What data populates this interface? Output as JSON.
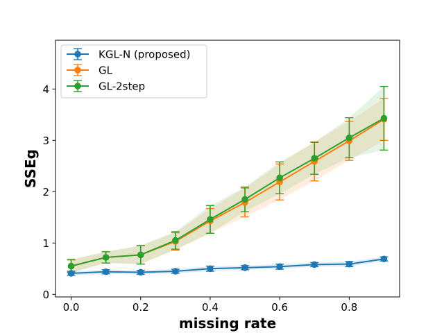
{
  "chart_data": {
    "type": "line",
    "title": "",
    "xlabel": "missing rate",
    "ylabel": "SSEg",
    "xlim": [
      -0.045,
      0.945
    ],
    "ylim": [
      -0.05,
      4.95
    ],
    "xticks": [
      0.0,
      0.2,
      0.4,
      0.6,
      0.8
    ],
    "xtick_labels": [
      "0.0",
      "0.2",
      "0.4",
      "0.6",
      "0.8"
    ],
    "yticks": [
      0,
      1,
      2,
      3,
      4
    ],
    "ytick_labels": [
      "0",
      "1",
      "2",
      "3",
      "4"
    ],
    "grid": false,
    "legend_position": "upper-left",
    "x": [
      0.0,
      0.1,
      0.2,
      0.3,
      0.4,
      0.5,
      0.6,
      0.7,
      0.8,
      0.9
    ],
    "series": [
      {
        "name": "KGL-N (proposed)",
        "color": "#1f77b4",
        "values": [
          0.41,
          0.44,
          0.43,
          0.45,
          0.5,
          0.52,
          0.54,
          0.58,
          0.59,
          0.69
        ],
        "errors": [
          0.04,
          0.04,
          0.04,
          0.04,
          0.05,
          0.04,
          0.05,
          0.04,
          0.05,
          0.04
        ]
      },
      {
        "name": "GL",
        "color": "#ff7f0e",
        "values": [
          0.55,
          0.72,
          0.77,
          1.03,
          1.43,
          1.79,
          2.19,
          2.59,
          2.99,
          3.41
        ],
        "errors": [
          0.12,
          0.11,
          0.18,
          0.17,
          0.24,
          0.28,
          0.35,
          0.38,
          0.38,
          0.41
        ]
      },
      {
        "name": "GL-2step",
        "color": "#2ca02c",
        "values": [
          0.55,
          0.72,
          0.77,
          1.05,
          1.46,
          1.85,
          2.27,
          2.65,
          3.05,
          3.43
        ],
        "errors": [
          0.13,
          0.11,
          0.18,
          0.17,
          0.27,
          0.24,
          0.31,
          0.31,
          0.39,
          0.62
        ]
      }
    ]
  }
}
